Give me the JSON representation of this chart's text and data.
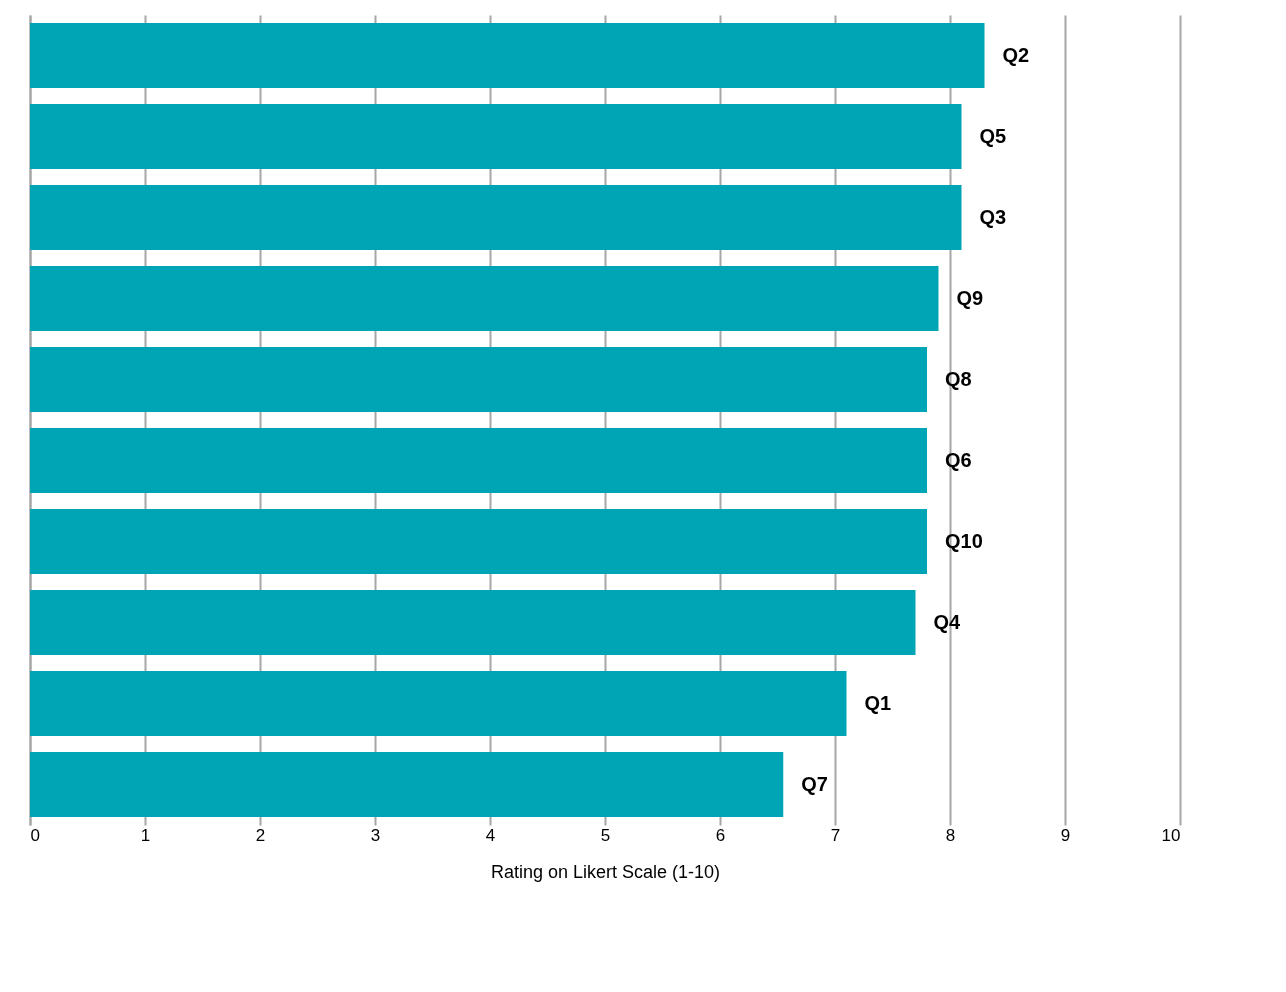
{
  "chart_data": {
    "type": "bar",
    "orientation": "horizontal",
    "xlabel": "Rating on Likert Scale (1-10)",
    "categories": [
      "Q2",
      "Q5",
      "Q3",
      "Q9",
      "Q8",
      "Q6",
      "Q10",
      "Q4",
      "Q1",
      "Q7"
    ],
    "values": [
      8.3,
      8.1,
      8.1,
      7.9,
      7.8,
      7.8,
      7.8,
      7.7,
      7.1,
      6.55
    ],
    "color": "#00a5b5",
    "xlim": [
      0,
      10
    ],
    "xticks": [
      0,
      1,
      2,
      3,
      4,
      5,
      6,
      7,
      8,
      9,
      10
    ],
    "grid": "x",
    "tick_labels": "x"
  }
}
